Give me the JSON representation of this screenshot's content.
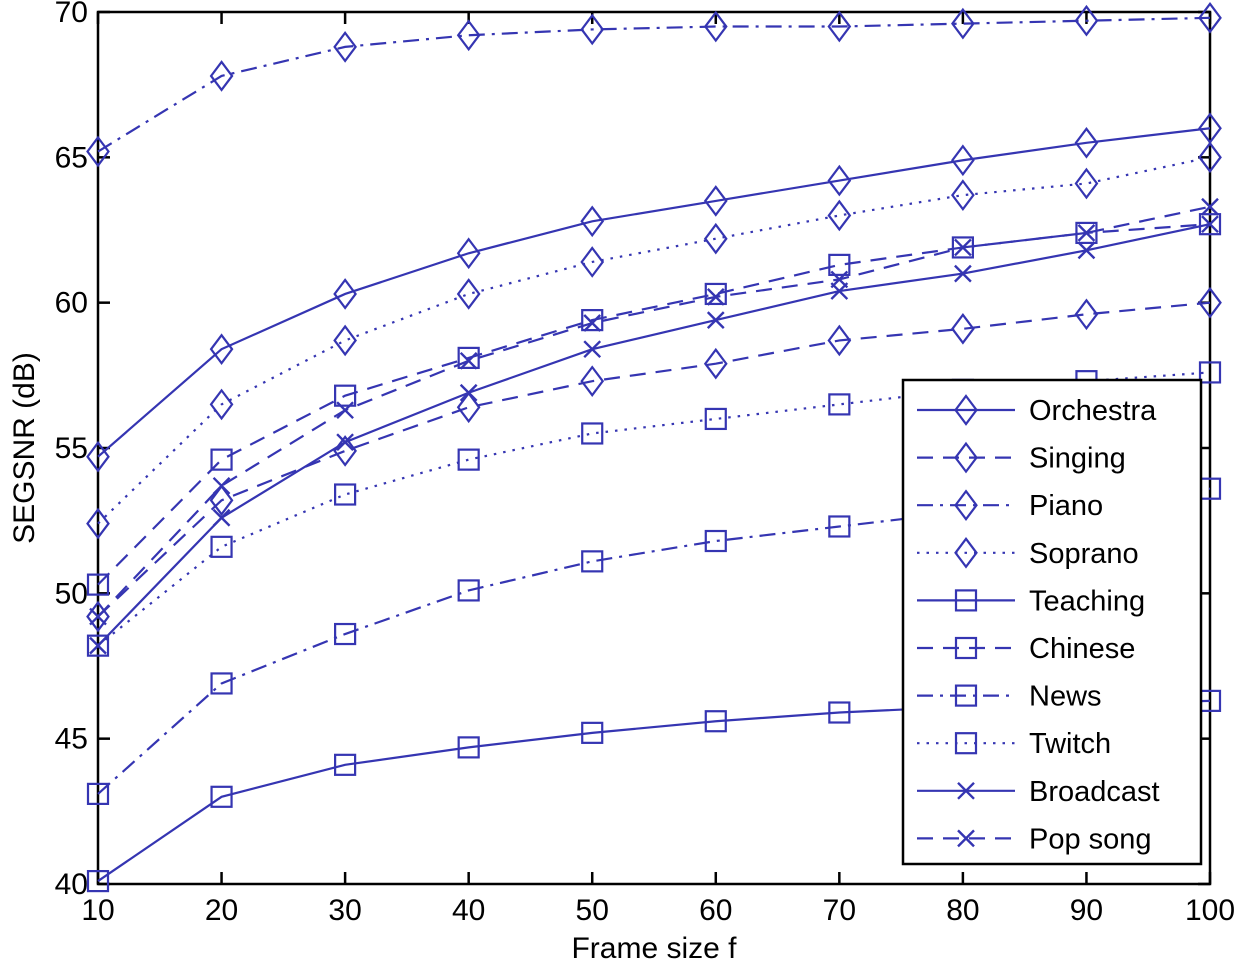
{
  "figure": {
    "xlabel": "Frame size f",
    "ylabel": "SEGSNR (dB)",
    "line_color": "#3535b2",
    "axis_color": "#000000",
    "background_color": "#ffffff",
    "legend_border_color": "#000000"
  },
  "chart_data": {
    "type": "line",
    "x": [
      10,
      20,
      30,
      40,
      50,
      60,
      70,
      80,
      90,
      100
    ],
    "xlabel": "Frame size f",
    "ylabel": "SEGSNR (dB)",
    "xlim": [
      10,
      100
    ],
    "ylim": [
      40,
      70
    ],
    "xticks": [
      10,
      20,
      30,
      40,
      50,
      60,
      70,
      80,
      90,
      100
    ],
    "yticks": [
      40,
      45,
      50,
      55,
      60,
      65,
      70
    ],
    "grid": false,
    "legend_position": "inside-bottom-right",
    "series": [
      {
        "name": "Orchestra",
        "line": "solid",
        "marker": "diamond",
        "values": [
          54.7,
          58.4,
          60.3,
          61.7,
          62.8,
          63.5,
          64.2,
          64.9,
          65.5,
          66.0
        ]
      },
      {
        "name": "Singing",
        "line": "dashed",
        "marker": "diamond",
        "values": [
          49.2,
          53.2,
          54.9,
          56.4,
          57.3,
          57.9,
          58.7,
          59.1,
          59.6,
          60.0
        ]
      },
      {
        "name": "Piano",
        "line": "dashdot",
        "marker": "diamond",
        "values": [
          65.2,
          67.8,
          68.8,
          69.2,
          69.4,
          69.5,
          69.5,
          69.6,
          69.7,
          69.8
        ]
      },
      {
        "name": "Soprano",
        "line": "dotted",
        "marker": "diamond",
        "values": [
          52.4,
          56.5,
          58.7,
          60.3,
          61.4,
          62.2,
          63.0,
          63.7,
          64.1,
          65.0
        ]
      },
      {
        "name": "Teaching",
        "line": "solid",
        "marker": "square",
        "values": [
          40.1,
          43.0,
          44.1,
          44.7,
          45.2,
          45.6,
          45.9,
          46.1,
          46.2,
          46.3
        ]
      },
      {
        "name": "Chinese",
        "line": "dashed",
        "marker": "square",
        "values": [
          50.3,
          54.6,
          56.8,
          58.1,
          59.4,
          60.3,
          61.3,
          61.9,
          62.4,
          62.7
        ]
      },
      {
        "name": "News",
        "line": "dashdot",
        "marker": "square",
        "values": [
          43.1,
          46.9,
          48.6,
          50.1,
          51.1,
          51.8,
          52.3,
          52.8,
          53.2,
          53.6
        ]
      },
      {
        "name": "Twitch",
        "line": "dotted",
        "marker": "square",
        "values": [
          48.2,
          51.6,
          53.4,
          54.6,
          55.5,
          56.0,
          56.5,
          57.0,
          57.3,
          57.6
        ]
      },
      {
        "name": "Broadcast",
        "line": "solid",
        "marker": "x",
        "values": [
          48.2,
          52.6,
          55.2,
          56.9,
          58.4,
          59.4,
          60.4,
          61.0,
          61.8,
          62.7
        ]
      },
      {
        "name": "Pop song",
        "line": "dashed",
        "marker": "x",
        "values": [
          49.2,
          53.7,
          56.3,
          58.0,
          59.3,
          60.2,
          60.8,
          61.9,
          62.4,
          63.3
        ]
      }
    ]
  }
}
